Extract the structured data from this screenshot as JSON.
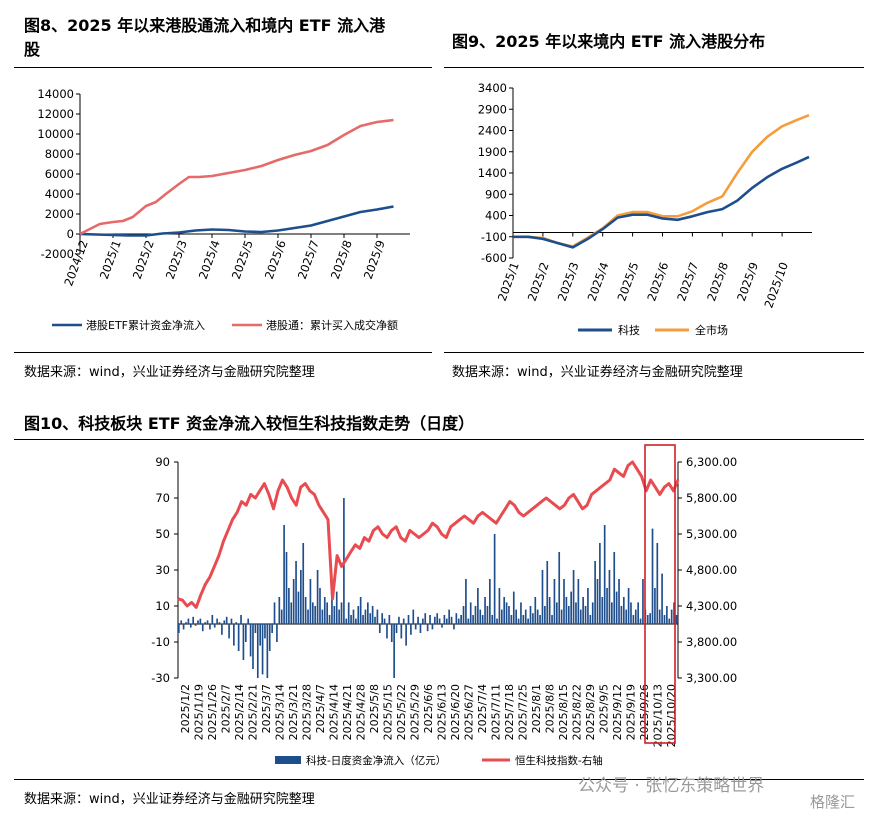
{
  "fig8": {
    "title_line1": "图8、2025 年以来港股通流入和境内 ETF 流入港",
    "title_line2": "股",
    "source": "数据来源：wind，兴业证券经济与金融研究院整理"
  },
  "fig9": {
    "title": "图9、2025 年以来境内 ETF 流入港股分布",
    "source": "数据来源：wind，兴业证券经济与金融研究院整理"
  },
  "fig10": {
    "title": "图10、科技板块 ETF 资金净流入较恒生科技指数走势（日度）",
    "source": "数据来源：wind，兴业证券经济与金融研究院整理"
  },
  "watermark": "公众号 · 张忆东策略世界",
  "logo_text": "格隆汇",
  "chart_data": [
    {
      "type": "line",
      "x_ticks": [
        "2024/12",
        "2025/1",
        "2025/2",
        "2025/3",
        "2025/4",
        "2025/5",
        "2025/6",
        "2025/7",
        "2025/8",
        "2025/9"
      ],
      "y_ticks": [
        "-2000",
        "0",
        "2000",
        "4000",
        "6000",
        "8000",
        "10000",
        "12000",
        "14000"
      ],
      "ylim": [
        -2000,
        14000
      ],
      "legend_position": "bottom",
      "series": [
        {
          "name": "港股ETF累计资金净流入",
          "color": "#1f4e8c",
          "x": [
            0,
            0.5,
            1,
            1.5,
            2,
            2.5,
            3,
            3.5,
            4,
            4.5,
            5,
            5.5,
            6,
            6.5,
            7,
            7.5,
            8,
            8.5,
            9,
            9.5
          ],
          "values": [
            0,
            -50,
            -100,
            -150,
            -150,
            50,
            150,
            350,
            450,
            400,
            250,
            200,
            350,
            600,
            850,
            1300,
            1750,
            2200,
            2450,
            2750
          ]
        },
        {
          "name": "港股通：累计买入成交净额",
          "color": "#e66a6a",
          "x": [
            0,
            0.3,
            0.6,
            1,
            1.3,
            1.6,
            2,
            2.3,
            2.6,
            3,
            3.3,
            3.6,
            4,
            4.5,
            5,
            5.5,
            6,
            6.5,
            7,
            7.5,
            8,
            8.5,
            9,
            9.5
          ],
          "values": [
            0,
            500,
            1000,
            1200,
            1300,
            1700,
            2800,
            3200,
            4000,
            5000,
            5700,
            5700,
            5800,
            6100,
            6400,
            6800,
            7400,
            7900,
            8300,
            8900,
            9900,
            10800,
            11200,
            11400
          ]
        }
      ]
    },
    {
      "type": "line",
      "x_ticks": [
        "2025/1",
        "2025/2",
        "2025/3",
        "2025/4",
        "2025/5",
        "2025/6",
        "2025/7",
        "2025/8",
        "2025/9",
        "2025/10"
      ],
      "y_ticks": [
        "-600",
        "-100",
        "400",
        "900",
        "1400",
        "1900",
        "2400",
        "2900",
        "3400"
      ],
      "ylim": [
        -600,
        3400
      ],
      "legend_position": "bottom",
      "series": [
        {
          "name": "科技",
          "color": "#1f4e8c",
          "x": [
            0,
            0.5,
            1,
            1.5,
            2,
            2.5,
            3,
            3.5,
            4,
            4.5,
            5,
            5.5,
            6,
            6.5,
            7,
            7.5,
            8,
            8.5,
            9,
            9.5,
            9.9
          ],
          "values": [
            -100,
            -100,
            -150,
            -250,
            -350,
            -150,
            80,
            350,
            420,
            420,
            330,
            300,
            380,
            480,
            550,
            750,
            1050,
            1300,
            1500,
            1650,
            1780
          ]
        },
        {
          "name": "全市场",
          "color": "#f59d3c",
          "x": [
            0,
            0.5,
            1,
            1.5,
            2,
            2.5,
            3,
            3.5,
            4,
            4.5,
            5,
            5.5,
            6,
            6.5,
            7,
            7.5,
            8,
            8.5,
            9,
            9.5,
            9.9
          ],
          "values": [
            -100,
            -100,
            -130,
            -250,
            -330,
            -120,
            100,
            400,
            480,
            480,
            380,
            380,
            500,
            700,
            850,
            1400,
            1900,
            2250,
            2500,
            2650,
            2760
          ]
        }
      ]
    },
    {
      "type": "bar",
      "x_ticks": [
        "2025/1/2",
        "2025/1/19",
        "2025/1/26",
        "2025/2/7",
        "2025/2/14",
        "2025/2/21",
        "2025/3/7",
        "2025/3/14",
        "2025/3/21",
        "2025/3/28",
        "2025/4/7",
        "2025/4/14",
        "2025/4/21",
        "2025/4/28",
        "2025/5/8",
        "2025/5/15",
        "2025/5/22",
        "2025/5/29",
        "2025/6/6",
        "2025/6/13",
        "2025/6/20",
        "2025/6/27",
        "2025/7/4",
        "2025/7/11",
        "2025/7/18",
        "2025/7/25",
        "2025/8/1",
        "2025/8/8",
        "2025/8/15",
        "2025/8/22",
        "2025/8/29",
        "2025/9/5",
        "2025/9/12",
        "2025/9/19",
        "2025/9/26",
        "2025/10/13",
        "2025/10/20"
      ],
      "y_left_ticks": [
        "-30",
        "-10",
        "10",
        "30",
        "50",
        "70",
        "90"
      ],
      "ylim_left": [
        -30,
        90
      ],
      "y_right_ticks": [
        "3,300.00",
        "3,800.00",
        "4,300.00",
        "4,800.00",
        "5,300.00",
        "5,800.00",
        "6,300.00"
      ],
      "ylim_right": [
        3300,
        6300
      ],
      "legend_position": "bottom",
      "highlight_range": [
        "2025/10/8",
        "2025/10/24"
      ],
      "series": [
        {
          "name": "科技-日度资金净流入（亿元）",
          "color": "#1f4e8c",
          "axis": "left",
          "values": [
            -5,
            2,
            -3,
            1,
            3,
            -2,
            4,
            -1,
            2,
            3,
            -4,
            1,
            2,
            -3,
            5,
            -2,
            3,
            1,
            -6,
            2,
            4,
            -8,
            3,
            -12,
            1,
            -15,
            5,
            -20,
            -10,
            3,
            -18,
            -25,
            -5,
            -30,
            -12,
            -28,
            -8,
            -30,
            -15,
            -5,
            12,
            -10,
            15,
            8,
            55,
            40,
            20,
            12,
            25,
            35,
            18,
            30,
            45,
            15,
            8,
            25,
            12,
            10,
            30,
            20,
            8,
            15,
            12,
            5,
            22,
            10,
            18,
            8,
            12,
            70,
            3,
            12,
            5,
            8,
            3,
            10,
            15,
            5,
            8,
            12,
            6,
            10,
            4,
            8,
            -5,
            6,
            3,
            -8,
            5,
            -10,
            -30,
            -5,
            4,
            -8,
            3,
            -12,
            5,
            -6,
            8,
            -3,
            4,
            -5,
            3,
            6,
            -4,
            5,
            -3,
            4,
            6,
            3,
            -2,
            5,
            3,
            8,
            4,
            -3,
            6,
            3,
            5,
            10,
            25,
            3,
            12,
            5,
            10,
            20,
            8,
            5,
            15,
            10,
            25,
            5,
            50,
            3,
            20,
            8,
            15,
            12,
            10,
            5,
            18,
            8,
            3,
            12,
            5,
            8,
            3,
            10,
            6,
            15,
            8,
            5,
            30,
            10,
            35,
            15,
            5,
            25,
            12,
            40,
            8,
            25,
            15,
            10,
            18,
            30,
            12,
            25,
            8,
            15,
            10,
            20,
            5,
            12,
            35,
            25,
            45,
            15,
            55,
            20,
            30,
            12,
            40,
            18,
            25,
            10,
            15,
            8,
            20,
            12,
            5,
            8,
            12,
            3,
            25,
            8,
            5,
            6,
            53,
            20,
            45,
            8,
            28,
            5,
            10,
            3,
            8,
            12,
            5
          ]
        },
        {
          "name": "恒生科技指数-右轴",
          "color": "#e84b50",
          "axis": "right",
          "values": [
            4400,
            4380,
            4300,
            4350,
            4280,
            4450,
            4600,
            4700,
            4850,
            5000,
            5200,
            5350,
            5500,
            5600,
            5750,
            5700,
            5850,
            5800,
            5900,
            6000,
            5850,
            5650,
            5900,
            6050,
            5950,
            5800,
            5700,
            5950,
            6000,
            5900,
            5850,
            5700,
            5600,
            5500,
            4400,
            5000,
            4850,
            4950,
            5050,
            5150,
            5100,
            5250,
            5200,
            5350,
            5400,
            5300,
            5250,
            5350,
            5400,
            5250,
            5200,
            5350,
            5300,
            5250,
            5300,
            5350,
            5450,
            5400,
            5300,
            5250,
            5400,
            5450,
            5500,
            5550,
            5500,
            5450,
            5550,
            5600,
            5550,
            5500,
            5450,
            5550,
            5650,
            5750,
            5700,
            5600,
            5550,
            5600,
            5650,
            5700,
            5750,
            5800,
            5750,
            5700,
            5650,
            5700,
            5800,
            5850,
            5750,
            5650,
            5700,
            5850,
            5900,
            5950,
            6000,
            6050,
            6200,
            6150,
            6100,
            6250,
            6300,
            6200,
            6100,
            5900,
            6050,
            5950,
            5850,
            5950,
            6000,
            5900,
            6050
          ]
        }
      ]
    }
  ]
}
